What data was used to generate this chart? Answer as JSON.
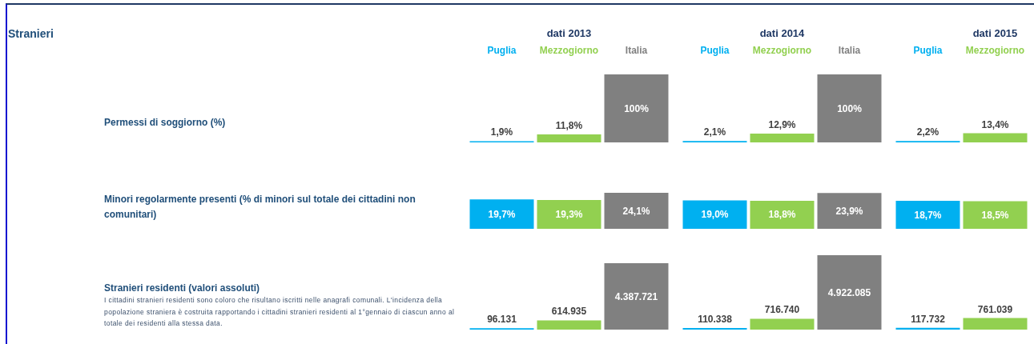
{
  "chart_data": [
    {
      "type": "bar",
      "ylabel": "Permessi di soggiorno (%)",
      "annotations": [
        "Stranieri"
      ],
      "categories": [
        "dati 2013",
        "dati 2014",
        "dati 2015"
      ],
      "tick_labels": "x",
      "series": [
        {
          "name": "Puglia",
          "color": "#00b0f0",
          "values": [
            1.9,
            2.1,
            2.2
          ],
          "value_labels": [
            "1,9%",
            "2,1%",
            "2,2%"
          ]
        },
        {
          "name": "Mezzogiorno",
          "color": "#92d050",
          "values": [
            11.8,
            12.9,
            13.4
          ],
          "value_labels": [
            "11,8%",
            "12,9%",
            "13,4%"
          ]
        },
        {
          "name": "Italia",
          "color": "#808080",
          "values": [
            100,
            100,
            null
          ],
          "value_labels": [
            "100%",
            "100%",
            null
          ]
        }
      ]
    },
    {
      "type": "bar",
      "ylabel": "Minori regolarmente presenti (% di minori sul totale dei cittadini non comunitari)",
      "categories": [
        null,
        null,
        null
      ],
      "series": [
        {
          "color": "#00b0f0",
          "values": [
            19.7,
            19.0,
            18.7
          ],
          "value_labels": [
            "19,7%",
            "19,0%",
            "18,7%"
          ]
        },
        {
          "color": "#92d050",
          "values": [
            19.3,
            18.8,
            18.5
          ],
          "value_labels": [
            "19,3%",
            "18,8%",
            "18,5%"
          ]
        },
        {
          "color": "#808080",
          "values": [
            24.1,
            23.9,
            null
          ],
          "value_labels": [
            "24,1%",
            "23,9%",
            null
          ]
        }
      ]
    },
    {
      "type": "bar",
      "ylabel": "Stranieri residenti (valori assoluti)",
      "annotations": [
        "I cittadini stranieri residenti sono coloro che risultano iscritti nelle anagrafi comunali. L'incidenza della popolazione straniera è costruita rapportando i cittadini stranieri residenti al 1°gennaio di ciascun anno al totale dei residenti alla stessa data."
      ],
      "categories": [
        null,
        null,
        null
      ],
      "series": [
        {
          "color": "#00b0f0",
          "values": [
            96131,
            110338,
            117732
          ],
          "value_labels": [
            "96.131",
            "110.338",
            "117.732"
          ]
        },
        {
          "color": "#92d050",
          "values": [
            614935,
            716740,
            761039
          ],
          "value_labels": [
            "614.935",
            "716.740",
            "761.039"
          ]
        },
        {
          "color": "#808080",
          "values": [
            4387721,
            4922085,
            null
          ],
          "value_labels": [
            "4.387.721",
            "4.922.085",
            null
          ]
        }
      ]
    }
  ]
}
